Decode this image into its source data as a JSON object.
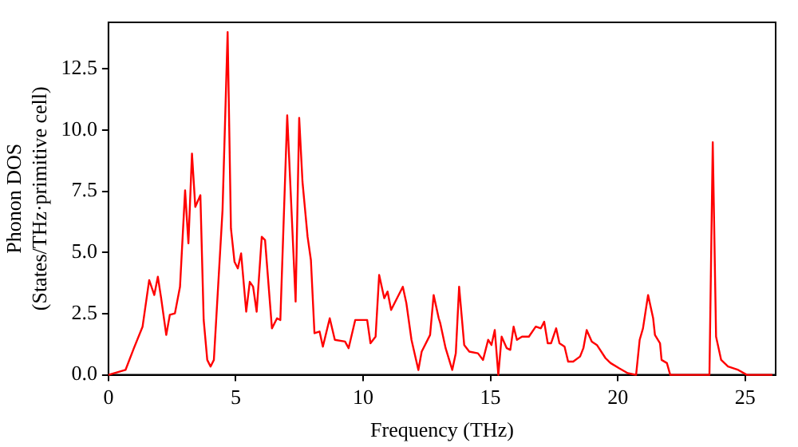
{
  "chart_data": {
    "type": "line",
    "xlabel": "Frequency (THz)",
    "ylabel": "Phonon DOS\n(States/THz·primitive cell)",
    "xlim": [
      0,
      26.2
    ],
    "ylim": [
      0,
      14.4
    ],
    "xticks": [
      0,
      5,
      10,
      15,
      20,
      25
    ],
    "yticks": [
      {
        "value": 0,
        "label": "0.0"
      },
      {
        "value": 2.5,
        "label": "2.5"
      },
      {
        "value": 5,
        "label": "5.0"
      },
      {
        "value": 7.5,
        "label": "7.5"
      },
      {
        "value": 10,
        "label": "10.0"
      },
      {
        "value": 12.5,
        "label": "12.5"
      }
    ],
    "grid": false,
    "legend": false,
    "marker": "none",
    "line_style": "solid",
    "series": [
      {
        "color": "#ff0000",
        "x": [
          0,
          0.67,
          1.0,
          1.34,
          1.6,
          1.8,
          1.94,
          2.07,
          2.27,
          2.41,
          2.61,
          2.81,
          3.01,
          3.14,
          3.28,
          3.41,
          3.61,
          3.74,
          3.88,
          4.01,
          4.14,
          4.48,
          4.68,
          4.81,
          4.95,
          5.08,
          5.21,
          5.41,
          5.55,
          5.68,
          5.82,
          6.02,
          6.15,
          6.42,
          6.62,
          6.75,
          7.02,
          7.35,
          7.49,
          7.62,
          7.82,
          7.95,
          8.09,
          8.29,
          8.42,
          8.69,
          8.89,
          9.29,
          9.43,
          9.69,
          10.16,
          10.29,
          10.49,
          10.63,
          10.83,
          10.96,
          11.1,
          11.56,
          11.7,
          11.9,
          12.17,
          12.3,
          12.63,
          12.77,
          12.97,
          13.03,
          13.24,
          13.5,
          13.64,
          13.77,
          13.97,
          14.17,
          14.51,
          14.71,
          14.91,
          15.04,
          15.17,
          15.31,
          15.44,
          15.64,
          15.78,
          15.91,
          16.04,
          16.24,
          16.51,
          16.78,
          16.98,
          17.11,
          17.25,
          17.38,
          17.58,
          17.71,
          17.91,
          18.05,
          18.25,
          18.52,
          18.65,
          18.78,
          18.98,
          19.18,
          19.52,
          19.72,
          20.05,
          20.39,
          20.72,
          20.86,
          20.99,
          21.19,
          21.39,
          21.46,
          21.66,
          21.72,
          21.93,
          22.06,
          23.6,
          23.73,
          23.86,
          24.06,
          24.33,
          24.73,
          25.07,
          26.07
        ],
        "values": [
          0,
          0.2,
          1.09,
          1.97,
          3.87,
          3.26,
          4.01,
          3.13,
          1.63,
          2.45,
          2.51,
          3.6,
          7.54,
          5.37,
          9.04,
          6.86,
          7.34,
          2.24,
          0.61,
          0.34,
          0.61,
          6.73,
          14.0,
          5.98,
          4.62,
          4.35,
          4.96,
          2.58,
          3.8,
          3.6,
          2.58,
          5.64,
          5.5,
          1.9,
          2.31,
          2.24,
          10.6,
          2.99,
          10.5,
          7.88,
          5.64,
          4.69,
          1.7,
          1.77,
          1.15,
          2.31,
          1.43,
          1.36,
          1.09,
          2.24,
          2.24,
          1.29,
          1.56,
          4.08,
          3.13,
          3.4,
          2.65,
          3.6,
          2.92,
          1.43,
          0.2,
          0.95,
          1.63,
          3.26,
          2.31,
          2.11,
          1.09,
          0.2,
          0.88,
          3.6,
          1.22,
          0.95,
          0.88,
          0.61,
          1.43,
          1.22,
          1.83,
          0,
          1.56,
          1.09,
          1.02,
          1.97,
          1.43,
          1.56,
          1.56,
          1.97,
          1.9,
          2.17,
          1.29,
          1.29,
          1.9,
          1.29,
          1.15,
          0.54,
          0.54,
          0.75,
          1.09,
          1.83,
          1.36,
          1.22,
          0.68,
          0.48,
          0.27,
          0.07,
          0,
          1.43,
          1.9,
          3.26,
          2.31,
          1.63,
          1.29,
          0.61,
          0.48,
          0,
          0,
          9.5,
          1.56,
          0.61,
          0.34,
          0.2,
          0,
          0
        ]
      }
    ]
  }
}
